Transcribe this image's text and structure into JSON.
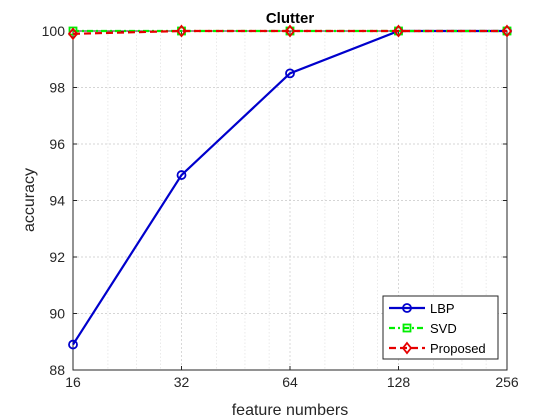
{
  "chart_data": {
    "type": "line",
    "title": "Clutter",
    "xlabel": "feature numbers",
    "ylabel": "accuracy",
    "x_scale": "log2",
    "x": [
      16,
      32,
      64,
      128,
      256
    ],
    "xticks": [
      "16",
      "32",
      "64",
      "128",
      "256"
    ],
    "yticks": [
      "88",
      "90",
      "92",
      "94",
      "96",
      "98",
      "100"
    ],
    "xlim": [
      16,
      256
    ],
    "ylim": [
      88,
      100
    ],
    "grid": true,
    "legend_location": "bottom-right",
    "series": [
      {
        "name": "LBP",
        "values": [
          88.9,
          94.9,
          98.5,
          100.0,
          100.0
        ],
        "color": "#0000cc",
        "line": "solid",
        "marker": "circle"
      },
      {
        "name": "SVD",
        "values": [
          100.0,
          100.0,
          100.0,
          100.0,
          100.0
        ],
        "color": "#00ee00",
        "line": "dash-dot",
        "marker": "square"
      },
      {
        "name": "Proposed",
        "values": [
          99.9,
          100.0,
          100.0,
          100.0,
          100.0
        ],
        "color": "#e60000",
        "line": "dashed",
        "marker": "diamond"
      }
    ]
  }
}
